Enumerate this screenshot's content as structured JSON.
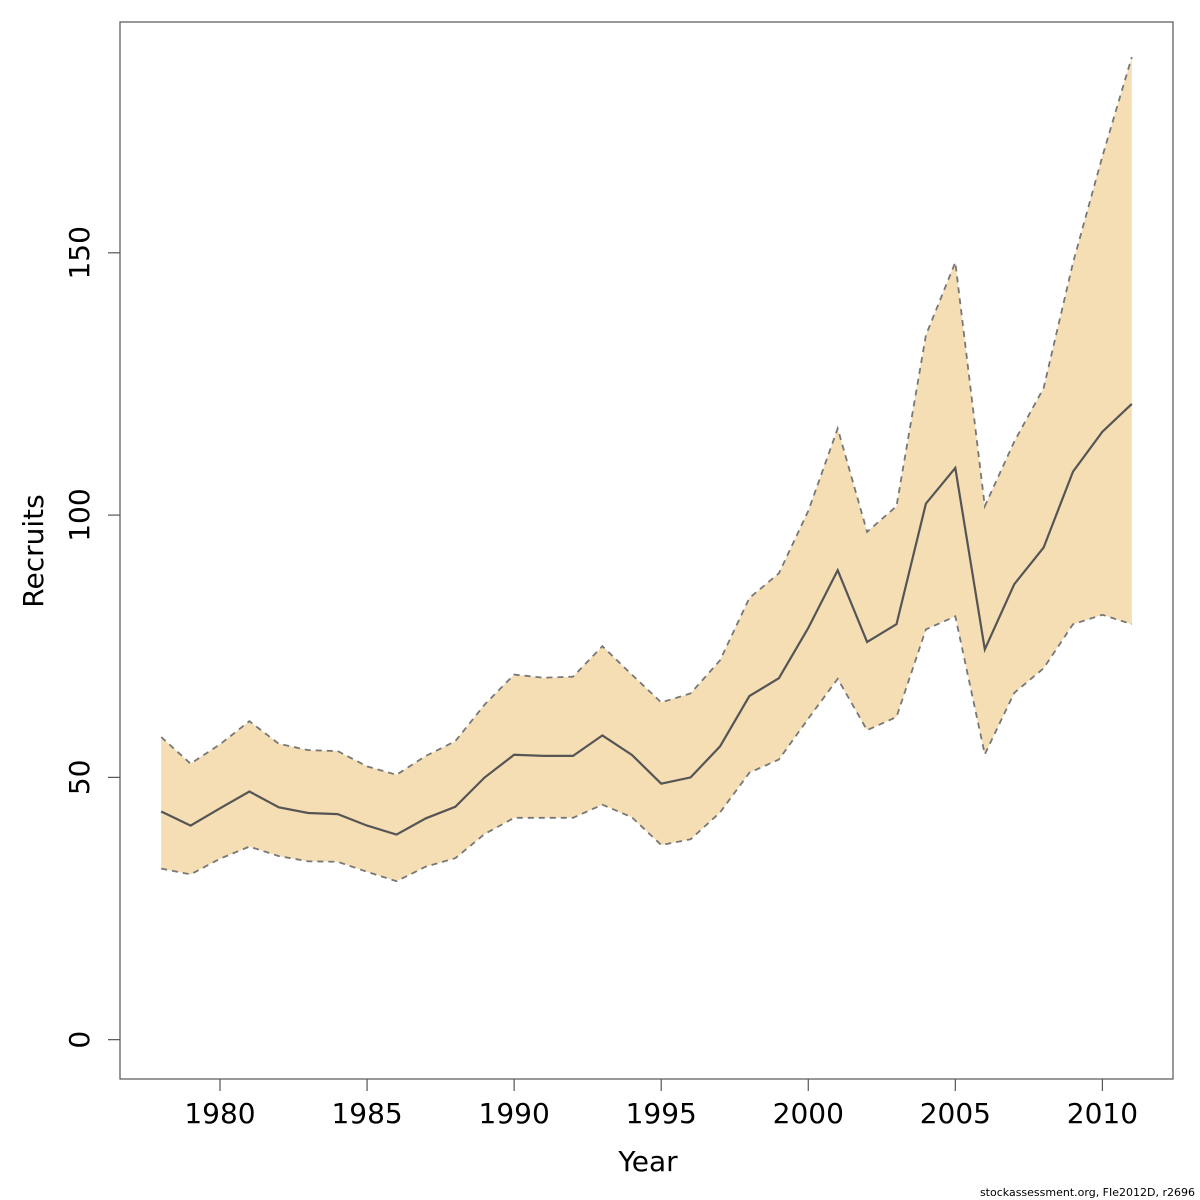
{
  "chart_data": {
    "type": "area",
    "xlabel": "Year",
    "ylabel": "Recruits",
    "xlim": [
      1976.6,
      2012.4
    ],
    "ylim": [
      -7.5,
      194
    ],
    "xticks": [
      1980,
      1985,
      1990,
      1995,
      2000,
      2005,
      2010
    ],
    "yticks": [
      0,
      50,
      100,
      150
    ],
    "grid": false,
    "colors": {
      "band": "#F5DEB3",
      "line": "#555555",
      "bound": "#777777",
      "axis": "#555555"
    },
    "x": [
      1978,
      1979,
      1980,
      1981,
      1982,
      1983,
      1984,
      1985,
      1986,
      1987,
      1988,
      1989,
      1990,
      1991,
      1992,
      1993,
      1994,
      1995,
      1996,
      1997,
      1998,
      1999,
      2000,
      2001,
      2002,
      2003,
      2004,
      2005,
      2006,
      2007,
      2008,
      2009,
      2010,
      2011
    ],
    "series": [
      {
        "role": "estimate",
        "values": [
          43.5,
          40.8,
          44.1,
          47.3,
          44.3,
          43.2,
          43.0,
          40.8,
          39.1,
          42.2,
          44.4,
          50.0,
          54.3,
          54.1,
          54.1,
          58.0,
          54.3,
          48.8,
          50.0,
          55.9,
          65.5,
          68.9,
          78.5,
          89.5,
          75.8,
          79.2,
          102.2,
          109.0,
          74.4,
          86.8,
          93.8,
          108.3,
          115.9,
          121.2
        ]
      },
      {
        "role": "upper",
        "values": [
          57.7,
          52.6,
          56.3,
          60.7,
          56.4,
          55.2,
          55.0,
          52.1,
          50.5,
          54.1,
          56.9,
          63.9,
          69.6,
          69.0,
          69.2,
          75.0,
          69.6,
          64.3,
          66.0,
          72.3,
          84.2,
          88.9,
          100.8,
          116.5,
          96.8,
          101.7,
          134.3,
          148.2,
          101.7,
          114.0,
          124.2,
          148.1,
          168.4,
          187.3
        ]
      },
      {
        "role": "lower",
        "values": [
          32.6,
          31.5,
          34.5,
          36.8,
          35.0,
          34.0,
          33.9,
          32.0,
          30.2,
          33.0,
          34.6,
          39.2,
          42.3,
          42.3,
          42.3,
          44.8,
          42.4,
          37.1,
          38.2,
          43.3,
          50.9,
          53.4,
          61.2,
          68.8,
          59.0,
          61.5,
          78.2,
          80.7,
          54.4,
          66.1,
          70.8,
          79.2,
          81.0,
          79.2
        ]
      }
    ]
  },
  "credit": "stockassessment.org, FIe2012D, r2696"
}
